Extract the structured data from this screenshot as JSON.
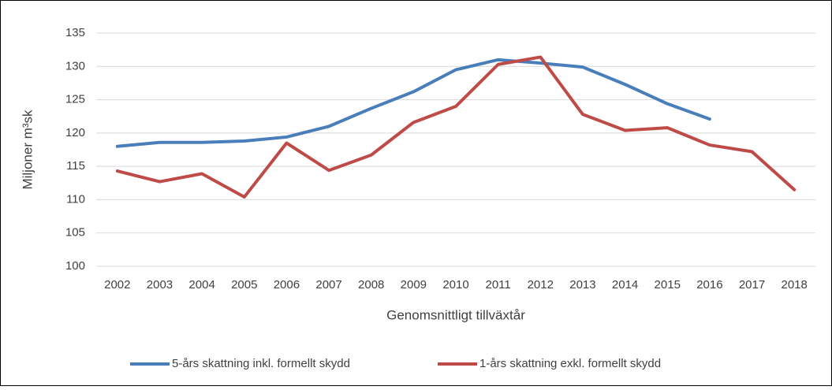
{
  "chart_data": {
    "type": "line",
    "x_label": "Genomsnittligt tillväxtår",
    "y_label": "Miljoner m³sk",
    "categories": [
      "2002",
      "2003",
      "2004",
      "2005",
      "2006",
      "2007",
      "2008",
      "2009",
      "2010",
      "2011",
      "2012",
      "2013",
      "2014",
      "2015",
      "2016",
      "2017",
      "2018"
    ],
    "series": [
      {
        "name": "5-års skattning inkl. formellt skydd",
        "color": "#4a7ebb",
        "values": [
          118.0,
          118.6,
          118.6,
          118.8,
          119.4,
          121.0,
          123.7,
          126.2,
          129.5,
          131.0,
          130.5,
          129.9,
          127.3,
          124.4,
          122.1,
          null,
          null
        ]
      },
      {
        "name": "1-års skattning exkl. formellt skydd",
        "color": "#be4b48",
        "values": [
          114.3,
          112.7,
          113.9,
          110.4,
          118.5,
          114.4,
          116.7,
          121.6,
          124.0,
          130.3,
          131.4,
          122.8,
          120.4,
          120.8,
          118.2,
          117.2,
          111.5
        ]
      }
    ],
    "ylim": [
      100,
      135
    ],
    "yticks": [
      100,
      105,
      110,
      115,
      120,
      125,
      130,
      135
    ],
    "grid": true,
    "legend": "bottom"
  }
}
